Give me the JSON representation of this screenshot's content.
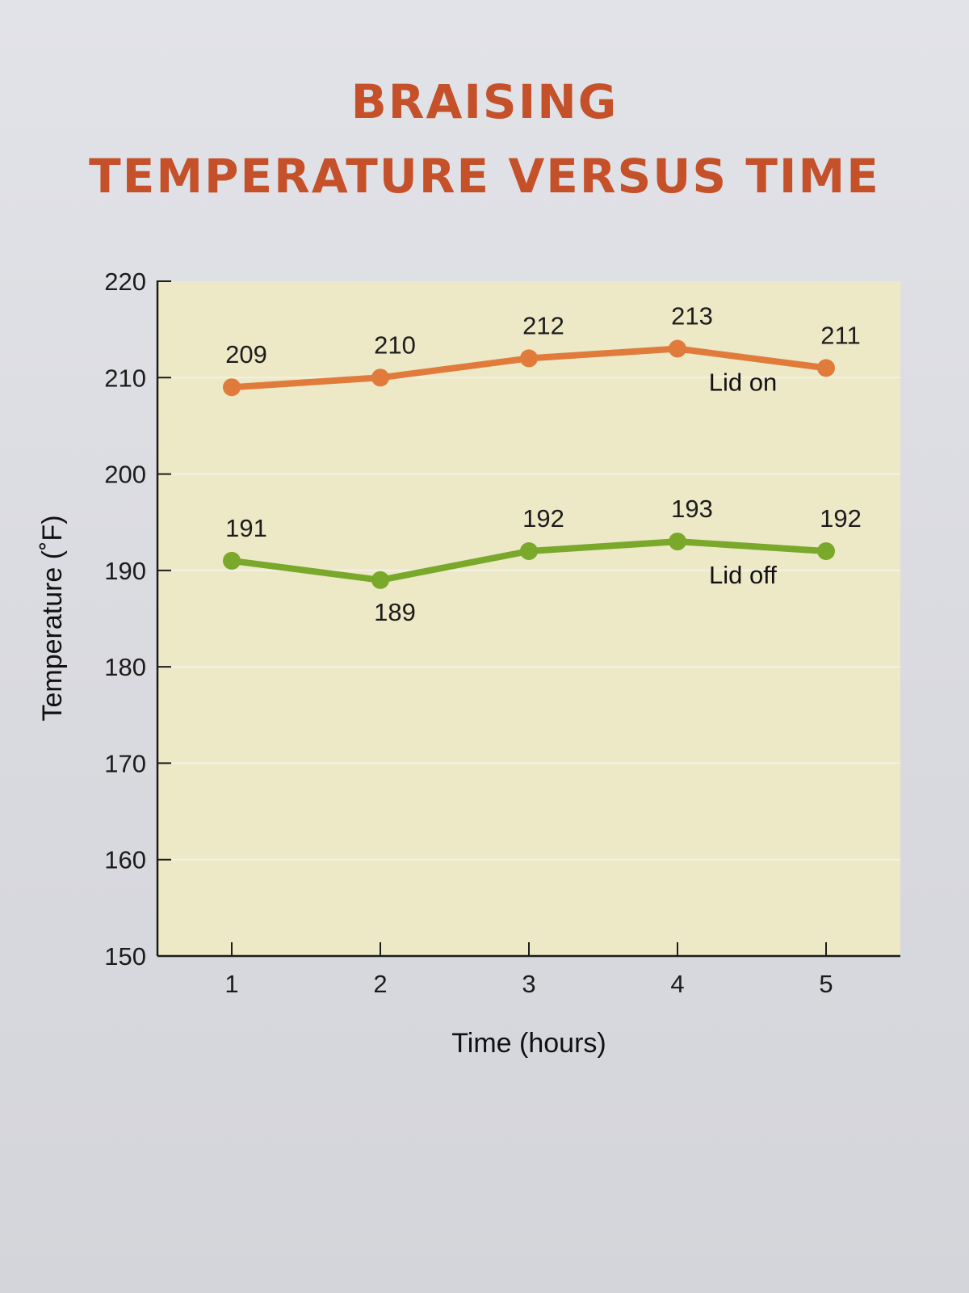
{
  "chart_data": {
    "type": "line",
    "title_line1": "BRAISING",
    "title_line2": "TEMPERATURE VERSUS TIME",
    "xlabel": "Time (hours)",
    "ylabel": "Temperature (˚F)",
    "x": [
      1,
      2,
      3,
      4,
      5
    ],
    "xticks": [
      "1",
      "2",
      "3",
      "4",
      "5"
    ],
    "yticks": [
      "150",
      "160",
      "170",
      "180",
      "190",
      "200",
      "210",
      "220"
    ],
    "ylim": [
      150,
      220
    ],
    "xlim": [
      0.5,
      5.5
    ],
    "grid": true,
    "series": [
      {
        "name": "Lid on",
        "color": "#e07b3c",
        "values": [
          209,
          210,
          212,
          213,
          211
        ],
        "labels": [
          "209",
          "210",
          "212",
          "213",
          "211"
        ]
      },
      {
        "name": "Lid off",
        "color": "#79a82a",
        "values": [
          191,
          189,
          192,
          193,
          192
        ],
        "labels": [
          "191",
          "189",
          "192",
          "193",
          "192"
        ]
      }
    ],
    "colors": {
      "title": "#c4512a",
      "plot_background": "#ede8c6",
      "gridline": "#f3f1e4",
      "axis": "#1c1c1c"
    }
  }
}
